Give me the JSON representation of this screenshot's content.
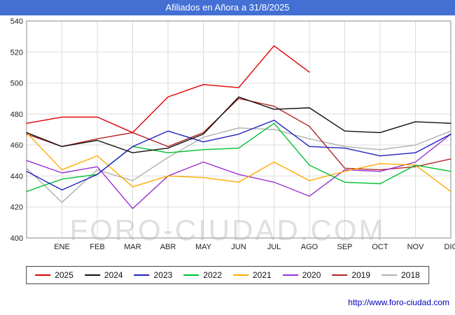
{
  "title": "Afiliados en Añora a 31/8/2025",
  "watermark": "FORO-CIUDAD.COM",
  "footer_url": "http://www.foro-ciudad.com",
  "colors": {
    "titlebar_bg": "#4470d4",
    "titlebar_text": "#ffffff",
    "grid": "#dddddd",
    "axis_border": "#888888",
    "watermark": "#b9b9b9"
  },
  "chart_data": {
    "type": "line",
    "title": "Afiliados en Añora a 31/8/2025",
    "xlabel": "",
    "ylabel": "",
    "ylim": [
      400,
      540
    ],
    "ytick_step": 20,
    "grid": true,
    "legend_position": "bottom",
    "categories": [
      "",
      "ENE",
      "FEB",
      "MAR",
      "ABR",
      "MAY",
      "JUN",
      "JUL",
      "AGO",
      "SEP",
      "OCT",
      "NOV",
      "DIC"
    ],
    "series": [
      {
        "name": "2025",
        "color": "#e00000",
        "values": [
          474,
          478,
          478,
          468,
          491,
          499,
          497,
          524,
          507
        ]
      },
      {
        "name": "2024",
        "color": "#101010",
        "values": [
          468,
          459,
          463,
          455,
          458,
          467,
          491,
          483,
          484,
          469,
          468,
          475,
          474
        ]
      },
      {
        "name": "2023",
        "color": "#2020c0",
        "values": [
          443,
          431,
          441,
          459,
          469,
          462,
          467,
          476,
          459,
          458,
          453,
          455,
          467
        ]
      },
      {
        "name": "2022",
        "color": "#00c030",
        "values": [
          430,
          438,
          441,
          459,
          455,
          457,
          458,
          474,
          447,
          436,
          435,
          447,
          443
        ]
      },
      {
        "name": "2021",
        "color": "#ffaa00",
        "values": [
          468,
          444,
          453,
          433,
          440,
          439,
          436,
          449,
          437,
          443,
          448,
          447,
          430
        ]
      },
      {
        "name": "2020",
        "color": "#9b30d0",
        "values": [
          450,
          442,
          446,
          419,
          440,
          449,
          441,
          436,
          427,
          444,
          443,
          449,
          467
        ]
      },
      {
        "name": "2019",
        "color": "#b22222",
        "values": [
          467,
          459,
          464,
          468,
          459,
          468,
          490,
          485,
          472,
          445,
          444,
          446,
          451
        ]
      },
      {
        "name": "2018",
        "color": "#b0b0b0",
        "values": [
          445,
          423,
          444,
          437,
          452,
          465,
          471,
          470,
          464,
          459,
          457,
          460,
          469
        ]
      }
    ]
  }
}
